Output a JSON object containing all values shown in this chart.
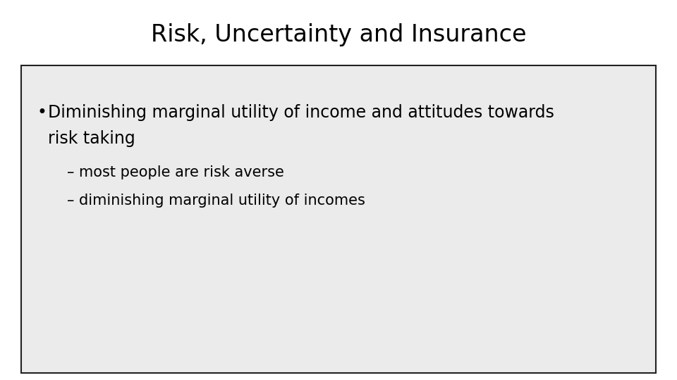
{
  "title": "Risk, Uncertainty and Insurance",
  "title_fontsize": 24,
  "title_color": "#000000",
  "background_color": "#ffffff",
  "box_background": "#ebebeb",
  "box_border_color": "#222222",
  "bullet_text_line1": "Diminishing marginal utility of income and attitudes towards",
  "bullet_text_line2": "risk taking",
  "sub_bullets": [
    "– most people are risk averse",
    "– diminishing marginal utility of incomes"
  ],
  "bullet_fontsize": 17,
  "sub_bullet_fontsize": 15,
  "text_color": "#000000",
  "font_family": "DejaVu Sans"
}
